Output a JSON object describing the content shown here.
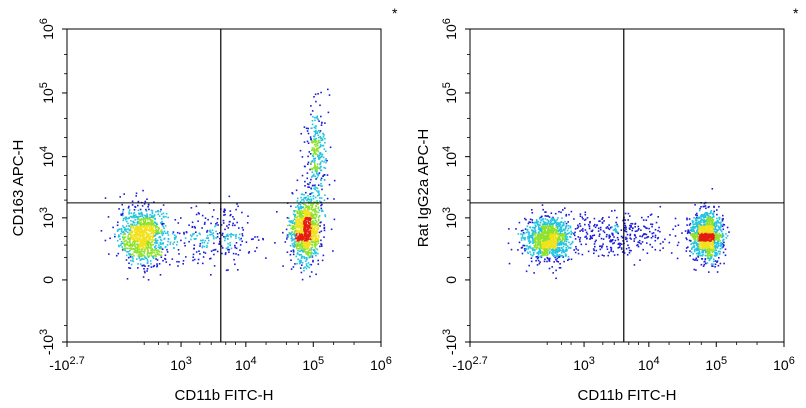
{
  "figure": {
    "description_type": "two flow cytometry density dot plots side by side"
  },
  "chart_data": [
    {
      "type": "scatter",
      "subtype": "flow-cytometry-density-dot-plot",
      "marker": "*",
      "xlabel": "CD11b FITC-H",
      "ylabel": "CD163 APC-H",
      "x_scale": "biexponential",
      "y_scale": "biexponential",
      "x_ticks": [
        {
          "base": "-10",
          "exp": "2.7",
          "pos": -500
        },
        {
          "base": "10",
          "exp": "3",
          "pos": 1000
        },
        {
          "base": "10",
          "exp": "4",
          "pos": 10000
        },
        {
          "base": "10",
          "exp": "5",
          "pos": 100000
        },
        {
          "base": "10",
          "exp": "6",
          "pos": 1000000
        }
      ],
      "y_ticks": [
        {
          "base": "-10",
          "exp": "3",
          "pos": -1000
        },
        {
          "base": "0",
          "exp": "",
          "pos": 0
        },
        {
          "base": "10",
          "exp": "3",
          "pos": 1000
        },
        {
          "base": "10",
          "exp": "4",
          "pos": 10000
        },
        {
          "base": "10",
          "exp": "5",
          "pos": 100000
        },
        {
          "base": "10",
          "exp": "6",
          "pos": 1000000
        }
      ],
      "quadrant_gate": {
        "x": 4200,
        "y": 1800
      },
      "populations": [
        {
          "name": "CD11b negative",
          "x_center": 180,
          "y_center": 480,
          "spread_x": 0.55,
          "spread_y": 0.8,
          "weight": 0.38
        },
        {
          "name": "CD11b positive",
          "x_center": 75000,
          "y_center": 620,
          "spread_x": 0.35,
          "spread_y": 0.85,
          "weight": 0.4
        },
        {
          "name": "CD11b positive CD163 positive",
          "x_center": 110000,
          "y_center": 9000,
          "spread_x": 0.25,
          "spread_y": 1.6,
          "weight": 0.12
        },
        {
          "name": "intermediate",
          "x_center": 3000,
          "y_center": 450,
          "spread_x": 1.2,
          "spread_y": 0.8,
          "weight": 0.1
        }
      ]
    },
    {
      "type": "scatter",
      "subtype": "flow-cytometry-density-dot-plot",
      "marker": "*",
      "xlabel": "CD11b FITC-H",
      "ylabel": "Rat IgG2a APC-H",
      "x_scale": "biexponential",
      "y_scale": "biexponential",
      "x_ticks": [
        {
          "base": "-10",
          "exp": "2.7",
          "pos": -500
        },
        {
          "base": "10",
          "exp": "3",
          "pos": 1000
        },
        {
          "base": "10",
          "exp": "4",
          "pos": 10000
        },
        {
          "base": "10",
          "exp": "5",
          "pos": 100000
        },
        {
          "base": "10",
          "exp": "6",
          "pos": 1000000
        }
      ],
      "y_ticks": [
        {
          "base": "-10",
          "exp": "3",
          "pos": -1000
        },
        {
          "base": "0",
          "exp": "",
          "pos": 0
        },
        {
          "base": "10",
          "exp": "3",
          "pos": 1000
        },
        {
          "base": "10",
          "exp": "4",
          "pos": 10000
        },
        {
          "base": "10",
          "exp": "5",
          "pos": 100000
        },
        {
          "base": "10",
          "exp": "6",
          "pos": 1000000
        }
      ],
      "quadrant_gate": {
        "x": 4200,
        "y": 1800
      },
      "populations": [
        {
          "name": "CD11b negative",
          "x_center": 200,
          "y_center": 420,
          "spread_x": 0.55,
          "spread_y": 0.6,
          "weight": 0.42
        },
        {
          "name": "CD11b positive",
          "x_center": 70000,
          "y_center": 480,
          "spread_x": 0.35,
          "spread_y": 0.65,
          "weight": 0.46
        },
        {
          "name": "intermediate",
          "x_center": 3500,
          "y_center": 500,
          "spread_x": 1.2,
          "spread_y": 0.6,
          "weight": 0.12
        }
      ]
    }
  ],
  "colors": {
    "axis": "#000000",
    "density_low": "#1c1cd8",
    "density_mid": "#23c4e0",
    "density_midhigh": "#8ee22c",
    "density_high": "#f2e21c",
    "density_peak": "#e61c10"
  }
}
